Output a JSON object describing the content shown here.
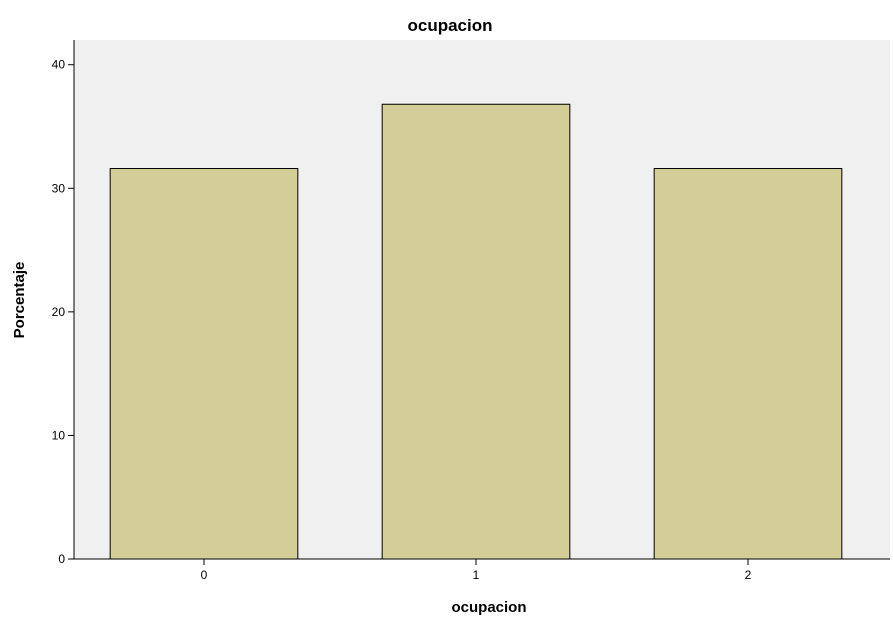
{
  "chart_data": {
    "type": "bar",
    "title": "ocupacion",
    "xlabel": "ocupacion",
    "ylabel": "Porcentaje",
    "categories": [
      "0",
      "1",
      "2"
    ],
    "values": [
      31.6,
      36.8,
      31.6
    ],
    "ylim": [
      0,
      42
    ],
    "yticks": [
      "0",
      "10",
      "20",
      "30",
      "40"
    ],
    "grid": false,
    "legend": "none",
    "colors": {
      "bar_fill": "#d3ce98",
      "bar_stroke": "#000000",
      "plot_background": "#f0f0f0"
    }
  }
}
